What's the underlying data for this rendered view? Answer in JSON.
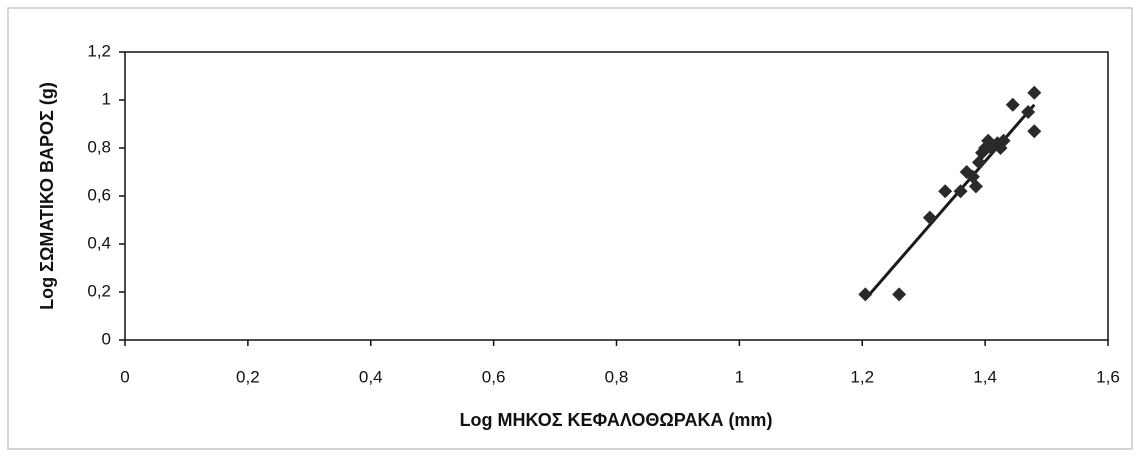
{
  "chart_data": {
    "type": "scatter",
    "xlabel": "Log ΜΗΚΟΣ ΚΕΦΑΛΟΘΩΡΑΚΑ (mm)",
    "ylabel": "Log ΣΩΜΑΤΙΚΟ ΒΑΡΟΣ (g)",
    "x": [
      1.205,
      1.26,
      1.31,
      1.335,
      1.36,
      1.37,
      1.38,
      1.385,
      1.39,
      1.395,
      1.4,
      1.405,
      1.41,
      1.42,
      1.425,
      1.43,
      1.445,
      1.47,
      1.48,
      1.48
    ],
    "values": [
      0.19,
      0.19,
      0.51,
      0.62,
      0.62,
      0.7,
      0.68,
      0.64,
      0.74,
      0.78,
      0.8,
      0.83,
      0.8,
      0.82,
      0.8,
      0.83,
      0.98,
      0.95,
      1.03,
      0.87
    ],
    "color": "#2a2a2a",
    "trendline": {
      "x": [
        1.205,
        1.48
      ],
      "y": [
        0.17,
        0.98
      ],
      "color": "#1a1a1a"
    },
    "xlim": [
      0,
      1.6
    ],
    "xticks": [
      0,
      {
        "value": 0.2,
        "label": "0,2"
      },
      {
        "value": 0.4,
        "label": "0,4"
      },
      {
        "value": 0.6,
        "label": "0,6"
      },
      {
        "value": 0.8,
        "label": "0,8"
      },
      1,
      {
        "value": 1.2,
        "label": "1,2"
      },
      {
        "value": 1.4,
        "label": "1,4"
      },
      {
        "value": 1.6,
        "label": "1,6"
      }
    ],
    "ylim": [
      0,
      1.2
    ],
    "yticks": [
      0,
      {
        "value": 0.2,
        "label": "0,2"
      },
      {
        "value": 0.4,
        "label": "0,4"
      },
      {
        "value": 0.6,
        "label": "0,6"
      },
      {
        "value": 0.8,
        "label": "0,8"
      },
      1,
      {
        "value": 1.2,
        "label": "1,2"
      }
    ],
    "grid": false
  }
}
